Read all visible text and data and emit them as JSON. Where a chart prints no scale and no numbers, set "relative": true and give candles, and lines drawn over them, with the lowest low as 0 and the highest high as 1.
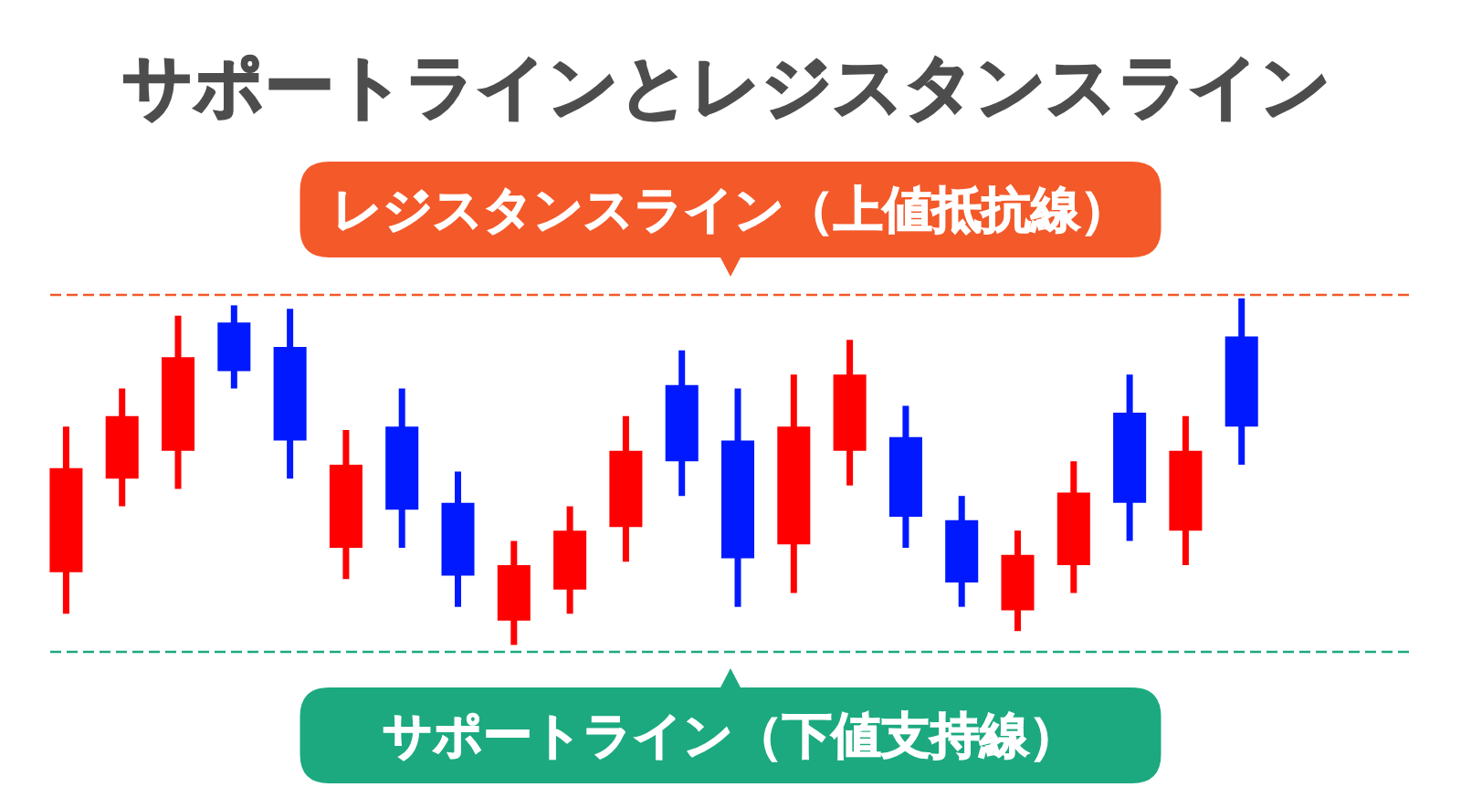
{
  "chart_data": {
    "type": "candlestick",
    "title": "サポートラインとレジスタンスライン",
    "categories": [
      null,
      null,
      null,
      null,
      null,
      null,
      null,
      null,
      null,
      null,
      null,
      null,
      null,
      null,
      null,
      null,
      null,
      null,
      null,
      null,
      null,
      null
    ],
    "ohlc": [
      [
        0.21,
        0.63,
        0.09,
        0.51
      ],
      [
        0.48,
        0.74,
        0.4,
        0.66
      ],
      [
        0.56,
        0.95,
        0.45,
        0.83
      ],
      [
        0.93,
        0.98,
        0.74,
        0.79
      ],
      [
        0.86,
        0.97,
        0.48,
        0.59
      ],
      [
        0.28,
        0.62,
        0.19,
        0.52
      ],
      [
        0.63,
        0.74,
        0.28,
        0.39
      ],
      [
        0.41,
        0.5,
        0.11,
        0.2
      ],
      [
        0.07,
        0.3,
        0,
        0.23
      ],
      [
        0.16,
        0.4,
        0.09,
        0.33
      ],
      [
        0.34,
        0.66,
        0.24,
        0.56
      ],
      [
        0.75,
        0.85,
        0.43,
        0.53
      ],
      [
        0.59,
        0.74,
        0.11,
        0.25
      ],
      [
        0.29,
        0.78,
        0.15,
        0.63
      ],
      [
        0.56,
        0.88,
        0.46,
        0.78
      ],
      [
        0.6,
        0.69,
        0.28,
        0.37
      ],
      [
        0.36,
        0.43,
        0.11,
        0.18
      ],
      [
        0.1,
        0.33,
        0.04,
        0.26
      ],
      [
        0.23,
        0.53,
        0.15,
        0.44
      ],
      [
        0.67,
        0.78,
        0.3,
        0.41
      ],
      [
        0.33,
        0.66,
        0.23,
        0.56
      ],
      [
        0.89,
        1,
        0.52,
        0.63
      ]
    ],
    "colors": [
      "#ff0000",
      "#ff0000",
      "#ff0000",
      "#0019ff",
      "#0019ff",
      "#ff0000",
      "#0019ff",
      "#0019ff",
      "#ff0000",
      "#ff0000",
      "#ff0000",
      "#0019ff",
      "#0019ff",
      "#ff0000",
      "#ff0000",
      "#0019ff",
      "#0019ff",
      "#ff0000",
      "#ff0000",
      "#0019ff",
      "#ff0000",
      "#0019ff"
    ],
    "relative": true,
    "ref_lines": [
      {
        "axis": "y",
        "value": 1.01,
        "label": "レジスタンスライン（上値抵抗線）",
        "color": "#f4592a",
        "line_style": "dashed"
      },
      {
        "axis": "y",
        "value": -0.02,
        "label": "サポートライン（下値支持線）",
        "color": "#1ca97f",
        "line_style": "dashed"
      }
    ]
  }
}
